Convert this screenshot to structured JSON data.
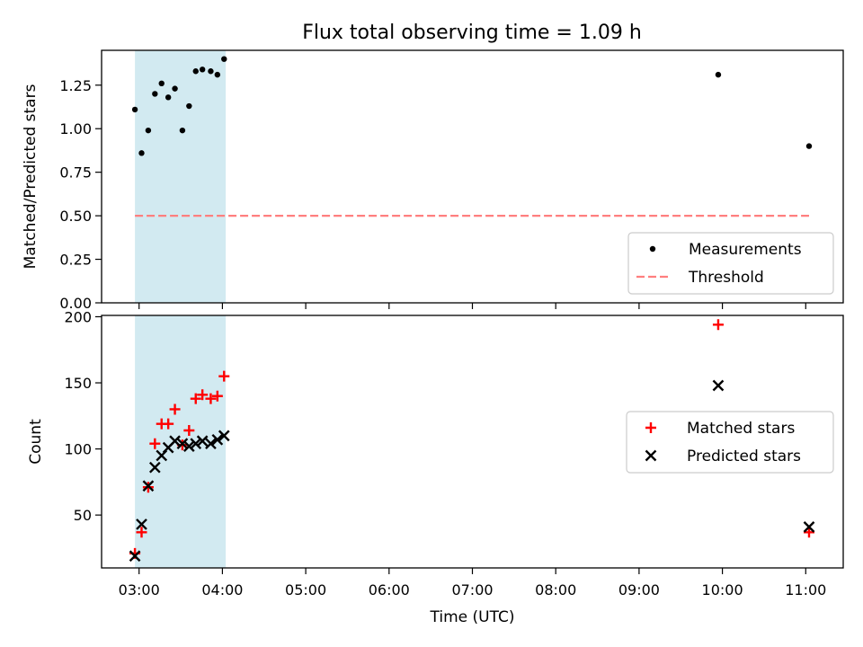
{
  "title": "Flux total observing time = 1.09 h",
  "colors": {
    "shade": "#add8e6",
    "threshold": "#ff7f7f",
    "matched": "#ff0000",
    "predicted": "#000000",
    "measurements": "#000000"
  },
  "chart_data": [
    {
      "type": "scatter",
      "title": "Flux total observing time = 1.09 h",
      "xlabel": "",
      "ylabel": "Matched/Predicted stars",
      "x_unit": "hours UTC",
      "xlim": [
        2.55,
        11.45
      ],
      "ylim": [
        0.0,
        1.45
      ],
      "yticks": [
        0.0,
        0.25,
        0.5,
        0.75,
        1.0,
        1.25
      ],
      "ytick_labels": [
        "0.00",
        "0.25",
        "0.50",
        "0.75",
        "1.00",
        "1.25"
      ],
      "xtick_labels_shown": false,
      "shaded_x_range": [
        2.95,
        4.04
      ],
      "legend_position": "lower-right",
      "series": [
        {
          "name": "Measurements",
          "marker": "dot",
          "x": [
            2.95,
            3.03,
            3.11,
            3.19,
            3.27,
            3.35,
            3.43,
            3.52,
            3.6,
            3.68,
            3.76,
            3.86,
            3.94,
            4.02,
            9.95,
            11.04
          ],
          "y": [
            1.11,
            0.86,
            0.99,
            1.2,
            1.26,
            1.18,
            1.23,
            0.99,
            1.13,
            1.33,
            1.34,
            1.33,
            1.31,
            1.4,
            1.31,
            0.9
          ]
        },
        {
          "name": "Threshold",
          "marker": "dashed-line",
          "x": [
            2.95,
            11.04
          ],
          "y": [
            0.5,
            0.5
          ]
        }
      ]
    },
    {
      "type": "scatter",
      "xlabel": "Time (UTC)",
      "ylabel": "Count",
      "x_unit": "hours UTC",
      "xlim": [
        2.55,
        11.45
      ],
      "ylim": [
        10,
        201
      ],
      "yticks": [
        50,
        100,
        150,
        200
      ],
      "ytick_labels": [
        "50",
        "100",
        "150",
        "200"
      ],
      "xticks": [
        3,
        4,
        5,
        6,
        7,
        8,
        9,
        10,
        11
      ],
      "xtick_labels": [
        "03:00",
        "04:00",
        "05:00",
        "06:00",
        "07:00",
        "08:00",
        "09:00",
        "10:00",
        "11:00"
      ],
      "shaded_x_range": [
        2.95,
        4.04
      ],
      "legend_position": "center-right",
      "series": [
        {
          "name": "Matched stars",
          "marker": "plus",
          "x": [
            2.95,
            3.03,
            3.11,
            3.19,
            3.27,
            3.35,
            3.43,
            3.52,
            3.6,
            3.68,
            3.76,
            3.86,
            3.94,
            4.02,
            9.95,
            11.04
          ],
          "y": [
            21,
            37,
            71,
            104,
            119,
            119,
            130,
            103,
            114,
            138,
            141,
            138,
            140,
            155,
            194,
            37
          ]
        },
        {
          "name": "Predicted stars",
          "marker": "x",
          "x": [
            2.95,
            3.03,
            3.11,
            3.19,
            3.27,
            3.35,
            3.43,
            3.52,
            3.6,
            3.68,
            3.76,
            3.86,
            3.94,
            4.02,
            9.95,
            11.04
          ],
          "y": [
            19,
            43,
            72,
            86,
            95,
            101,
            106,
            104,
            102,
            104,
            106,
            104,
            107,
            110,
            148,
            41
          ]
        }
      ]
    }
  ]
}
